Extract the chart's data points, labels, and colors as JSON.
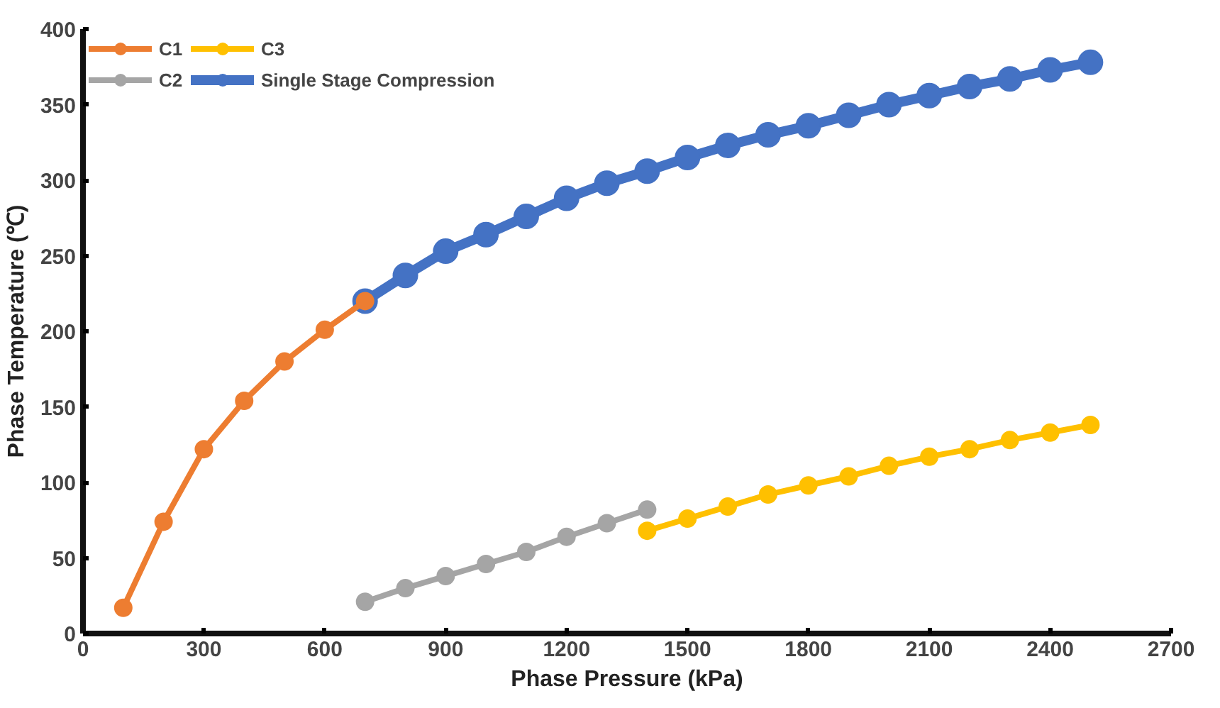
{
  "chart_data": {
    "type": "line",
    "xlabel": "Phase Pressure (kPa)",
    "ylabel": "Phase Temperature (℃)",
    "xlim": [
      0,
      2700
    ],
    "xticks": [
      0,
      300,
      600,
      900,
      1200,
      1500,
      1800,
      2100,
      2400,
      2700
    ],
    "ylim": [
      0,
      400
    ],
    "yticks": [
      0,
      50,
      100,
      150,
      200,
      250,
      300,
      350,
      400
    ],
    "grid": false,
    "legend": "top left",
    "marker": "circle",
    "line_style": "solid",
    "series": [
      {
        "name": "C1",
        "color": "#ed7d31",
        "x": [
          100,
          200,
          300,
          400,
          500,
          600,
          700
        ],
        "values": [
          17,
          74,
          122,
          154,
          180,
          201,
          220
        ]
      },
      {
        "name": "C2",
        "color": "#a5a5a5",
        "x": [
          700,
          800,
          900,
          1000,
          1100,
          1200,
          1300,
          1400
        ],
        "values": [
          21,
          30,
          38,
          46,
          54,
          64,
          73,
          82
        ]
      },
      {
        "name": "C3",
        "color": "#ffc000",
        "x": [
          1400,
          1500,
          1600,
          1700,
          1800,
          1900,
          2000,
          2100,
          2200,
          2300,
          2400,
          2500
        ],
        "values": [
          68,
          76,
          84,
          92,
          98,
          104,
          111,
          117,
          122,
          128,
          133,
          138
        ]
      },
      {
        "name": "Single Stage Compression",
        "color": "#4472c4",
        "x": [
          700,
          800,
          900,
          1000,
          1100,
          1200,
          1300,
          1400,
          1500,
          1600,
          1700,
          1800,
          1900,
          2000,
          2100,
          2200,
          2300,
          2400,
          2500
        ],
        "values": [
          220,
          237,
          253,
          264,
          276,
          288,
          298,
          306,
          315,
          323,
          330,
          336,
          343,
          350,
          356,
          362,
          367,
          373,
          378
        ]
      }
    ]
  }
}
